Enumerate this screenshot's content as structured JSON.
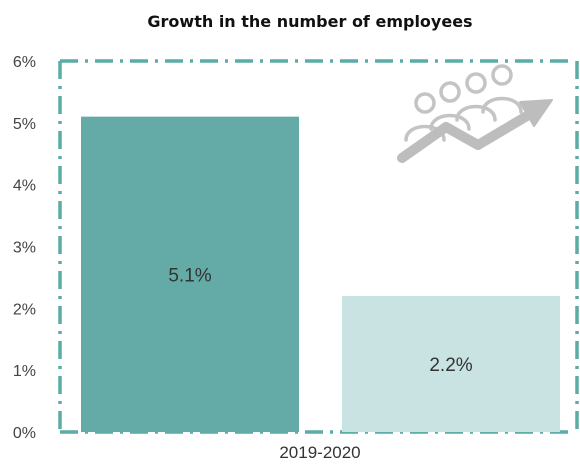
{
  "chart_data": {
    "type": "bar",
    "title": "Growth in the number of employees",
    "categories": [
      "2019-2020"
    ],
    "series": [
      {
        "values": [
          5.1
        ],
        "label": "5.1%",
        "color": "#64aaa6"
      },
      {
        "values": [
          2.2
        ],
        "label": "2.2%",
        "color": "#c8e3e2"
      }
    ],
    "yticks": [
      "0%",
      "1%",
      "2%",
      "3%",
      "4%",
      "5%",
      "6%"
    ],
    "ylim": [
      0,
      6
    ],
    "frame_color": "#5aaca6",
    "icon": "people-growth-arrow-icon"
  }
}
